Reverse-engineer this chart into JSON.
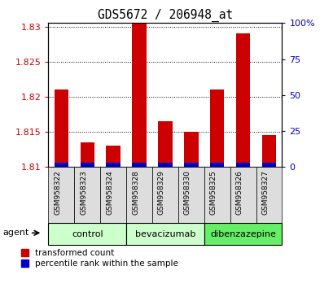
{
  "title": "GDS5672 / 206948_at",
  "samples": [
    "GSM958322",
    "GSM958323",
    "GSM958324",
    "GSM958328",
    "GSM958329",
    "GSM958330",
    "GSM958325",
    "GSM958326",
    "GSM958327"
  ],
  "transformed_count": [
    1.821,
    1.8135,
    1.813,
    1.8305,
    1.8165,
    1.815,
    1.821,
    1.829,
    1.8145
  ],
  "percentile_rank": [
    3,
    3,
    3,
    3,
    3,
    3,
    3,
    3,
    3
  ],
  "group_labels": [
    "control",
    "bevacizumab",
    "dibenzazepine"
  ],
  "group_ranges": [
    [
      0,
      3
    ],
    [
      3,
      6
    ],
    [
      6,
      9
    ]
  ],
  "group_colors": [
    "#ccffcc",
    "#ccffcc",
    "#66ee66"
  ],
  "ymin": 1.81,
  "ymax": 1.8305,
  "yticks": [
    1.81,
    1.815,
    1.82,
    1.825,
    1.83
  ],
  "ytick_labels": [
    "1.81",
    "1.815",
    "1.82",
    "1.825",
    "1.83"
  ],
  "right_yticks": [
    0,
    25,
    50,
    75,
    100
  ],
  "right_ytick_labels": [
    "0",
    "25",
    "50",
    "75",
    "100%"
  ],
  "bar_color_red": "#cc0000",
  "bar_color_blue": "#0000cc",
  "left_tick_color": "#cc0000",
  "right_tick_color": "#0000bb",
  "bg_color": "#ffffff",
  "sample_box_color": "#dddddd",
  "bar_width": 0.55
}
